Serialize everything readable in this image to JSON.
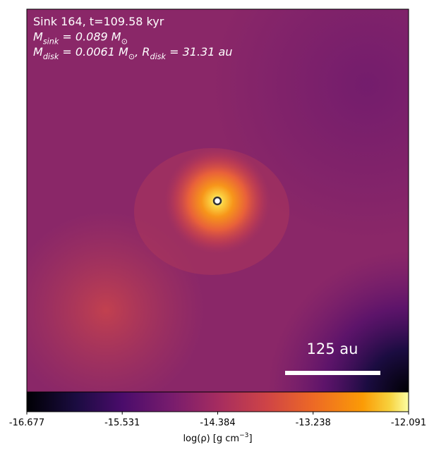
{
  "chart_data": {
    "type": "image",
    "annotation_lines": [
      [
        "Sink 164, t=109.58 kyr"
      ],
      [
        "M",
        "sink",
        " = 0.089 M",
        "⊙"
      ],
      [
        "M",
        "disk",
        " = 0.0061 M",
        "⊙",
        ", R",
        "disk",
        " = 31.31 au"
      ]
    ],
    "scale_bar_label": "125 au",
    "colorbar": {
      "label": [
        "log(ρ) [g cm",
        "−3",
        "]"
      ],
      "lim": [
        -16.677,
        -12.091
      ],
      "ticks": [
        -16.677,
        -15.531,
        -14.384,
        -13.238,
        -12.091
      ],
      "colormap": "inferno"
    }
  }
}
